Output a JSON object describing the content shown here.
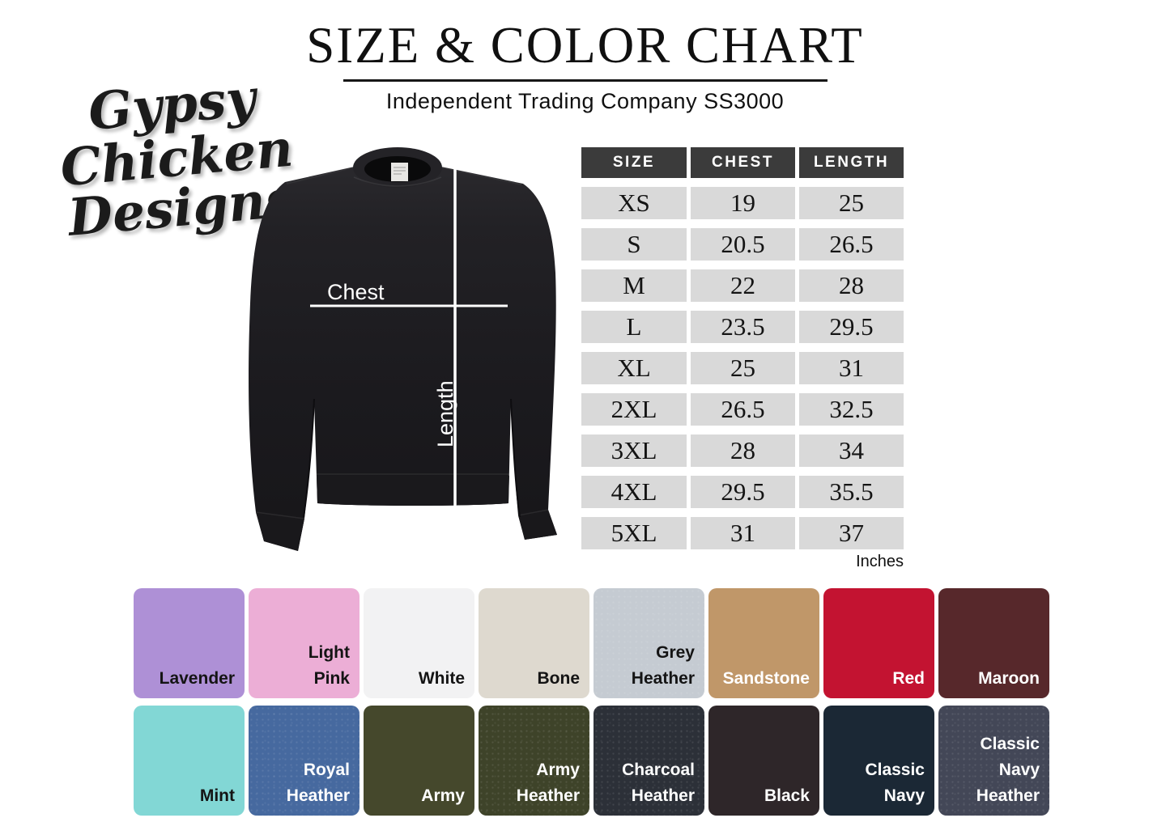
{
  "header": {
    "title": "SIZE & COLOR CHART",
    "subtitle": "Independent Trading Company SS3000"
  },
  "logo": {
    "line1": "Gypsy Chicken",
    "line2": "Designs"
  },
  "garment": {
    "chest_label": "Chest",
    "length_label": "Length"
  },
  "size_table": {
    "columns": [
      "SIZE",
      "CHEST",
      "LENGTH"
    ],
    "rows": [
      {
        "size": "XS",
        "chest": "19",
        "length": "25"
      },
      {
        "size": "S",
        "chest": "20.5",
        "length": "26.5"
      },
      {
        "size": "M",
        "chest": "22",
        "length": "28"
      },
      {
        "size": "L",
        "chest": "23.5",
        "length": "29.5"
      },
      {
        "size": "XL",
        "chest": "25",
        "length": "31"
      },
      {
        "size": "2XL",
        "chest": "26.5",
        "length": "32.5"
      },
      {
        "size": "3XL",
        "chest": "28",
        "length": "34"
      },
      {
        "size": "4XL",
        "chest": "29.5",
        "length": "35.5"
      },
      {
        "size": "5XL",
        "chest": "31",
        "length": "37"
      }
    ],
    "units_note": "Inches",
    "header_bg": "#3b3b3b",
    "header_text": "#ffffff",
    "cell_bg": "#d9d9d9"
  },
  "colors": [
    {
      "name": "Lavender",
      "hex": "#ae90d6",
      "text": "#141414",
      "heather": false
    },
    {
      "name": "Light Pink",
      "hex": "#ecaed6",
      "text": "#141414",
      "heather": false
    },
    {
      "name": "White",
      "hex": "#f2f2f3",
      "text": "#141414",
      "heather": false
    },
    {
      "name": "Bone",
      "hex": "#ded9cf",
      "text": "#141414",
      "heather": false
    },
    {
      "name": "Grey Heather",
      "hex": "#c5cbd2",
      "text": "#141414",
      "heather": true
    },
    {
      "name": "Sandstone",
      "hex": "#c09769",
      "text": "#ffffff",
      "heather": false
    },
    {
      "name": "Red",
      "hex": "#c31331",
      "text": "#ffffff",
      "heather": false
    },
    {
      "name": "Maroon",
      "hex": "#57282b",
      "text": "#ffffff",
      "heather": false
    },
    {
      "name": "Mint",
      "hex": "#82d7d5",
      "text": "#141414",
      "heather": false
    },
    {
      "name": "Royal Heather",
      "hex": "#46699f",
      "text": "#ffffff",
      "heather": true
    },
    {
      "name": "Army",
      "hex": "#45482c",
      "text": "#ffffff",
      "heather": false
    },
    {
      "name": "Army Heather",
      "hex": "#3e4329",
      "text": "#ffffff",
      "heather": true
    },
    {
      "name": "Charcoal Heather",
      "hex": "#2c3038",
      "text": "#ffffff",
      "heather": true
    },
    {
      "name": "Black",
      "hex": "#2e2629",
      "text": "#ffffff",
      "heather": false
    },
    {
      "name": "Classic Navy",
      "hex": "#1b2835",
      "text": "#ffffff",
      "heather": false
    },
    {
      "name": "Classic Navy Heather",
      "hex": "#434757",
      "text": "#ffffff",
      "heather": true
    }
  ]
}
